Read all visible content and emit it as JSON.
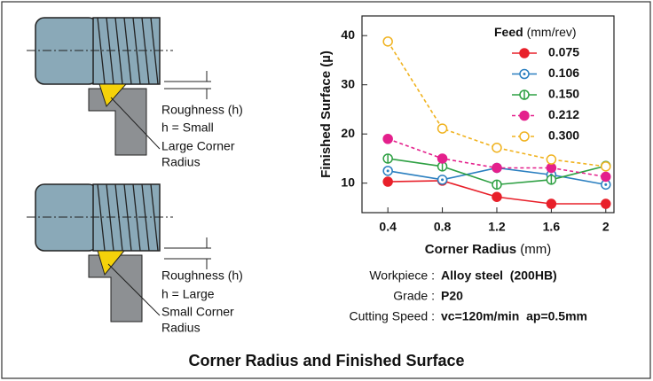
{
  "chart_data": {
    "type": "line",
    "x": [
      0.4,
      0.8,
      1.2,
      1.6,
      2.0
    ],
    "xlim": [
      0.21,
      2.06
    ],
    "xticks": [
      0.4,
      0.8,
      1.2,
      1.6,
      2.0
    ],
    "ylim": [
      4,
      44
    ],
    "yticks": [
      10,
      20,
      30,
      40
    ],
    "y_label": "Finished Surface (µ)",
    "x_label": "Corner Radius",
    "x_unit": "(mm)",
    "legend_title": "Feed",
    "legend_unit": "(mm/rev)",
    "series": [
      {
        "name": "0.075",
        "color": "#e8202a",
        "marker": "filled",
        "dashed": false,
        "values": [
          10.3,
          10.5,
          7.2,
          5.8,
          5.8
        ]
      },
      {
        "name": "0.106",
        "color": "#2a7fc0",
        "marker": "dot",
        "dashed": false,
        "values": [
          12.5,
          10.7,
          13.1,
          11.7,
          9.7
        ]
      },
      {
        "name": "0.150",
        "color": "#2ea043",
        "marker": "bar",
        "dashed": false,
        "values": [
          15.0,
          13.4,
          9.7,
          10.7,
          13.5
        ]
      },
      {
        "name": "0.212",
        "color": "#e4208c",
        "marker": "filled",
        "dashed": true,
        "values": [
          19.0,
          15.0,
          13.1,
          13.1,
          11.3
        ]
      },
      {
        "name": "0.300",
        "color": "#f0b21e",
        "marker": "open",
        "dashed": true,
        "values": [
          38.8,
          21.1,
          17.2,
          14.8,
          13.4
        ]
      }
    ]
  },
  "diagrams": [
    {
      "roughness": "Roughness (h)",
      "h": "h = Small",
      "radius": [
        "Large Corner",
        "Radius"
      ]
    },
    {
      "roughness": "Roughness (h)",
      "h": "h = Large",
      "radius": [
        "Small Corner",
        "Radius"
      ]
    }
  ],
  "conditions": [
    {
      "label": "Workpiece :",
      "value": "Alloy steel  (200HB)"
    },
    {
      "label": "Grade :",
      "value": "P20"
    },
    {
      "label": "Cutting Speed :",
      "value": "vc=120m/min  ap=0.5mm"
    }
  ],
  "caption": "Corner Radius and Finished Surface"
}
